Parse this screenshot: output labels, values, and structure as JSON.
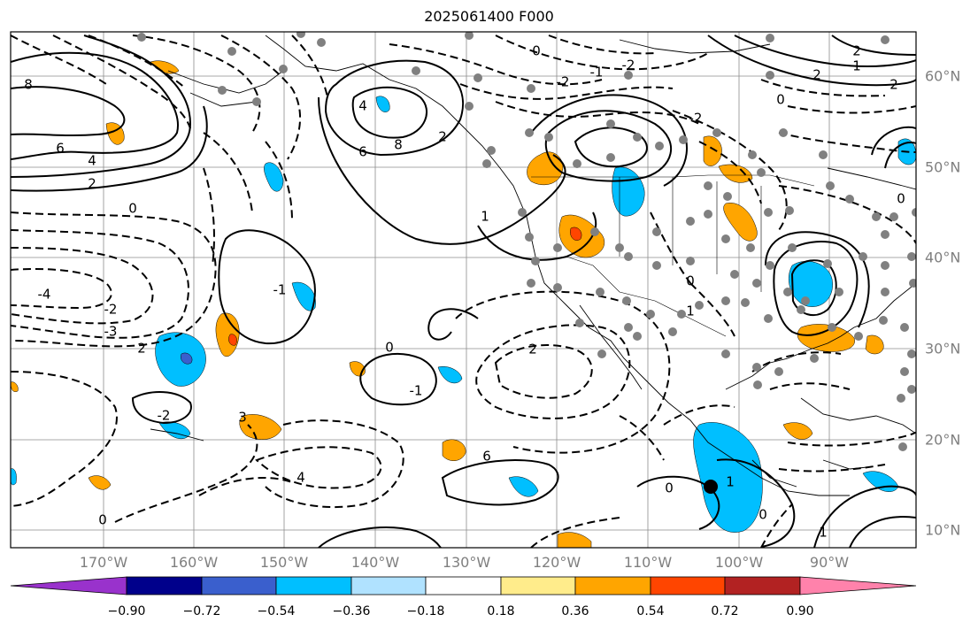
{
  "title": "2025061400 F000",
  "longitude_labels": [
    "170°W",
    "160°W",
    "150°W",
    "140°W",
    "130°W",
    "120°W",
    "110°W",
    "100°W",
    "90°W"
  ],
  "latitude_labels": [
    "60°N",
    "50°N",
    "40°N",
    "30°N",
    "20°N",
    "10°N"
  ],
  "contour_labels": [
    "8",
    "6",
    "4",
    "2",
    "0",
    "-1",
    "-2",
    "-3",
    "-4",
    "2",
    "6",
    "8",
    "4",
    "2",
    "1",
    "2",
    "0",
    "-1",
    "-2",
    "3",
    "4",
    "6",
    "0",
    "2",
    "1",
    "2",
    "0",
    "1",
    "0",
    "2",
    "-2",
    "0",
    "-1",
    "-2",
    "-2",
    "0",
    "1",
    "0",
    "1",
    "0"
  ],
  "colorbar": {
    "tick_labels": [
      "−0.90",
      "−0.72",
      "−0.54",
      "−0.36",
      "−0.18",
      "0.18",
      "0.36",
      "0.54",
      "0.72",
      "0.90"
    ],
    "colors": [
      "#9932cc",
      "#00008b",
      "#3a5fcd",
      "#00bfff",
      "#b0e2ff",
      "#ffffff",
      "#ffec8b",
      "#ffa500",
      "#ff4500",
      "#b22222",
      "#ff82ab"
    ]
  },
  "fill_colors": {
    "neg_light": "#b0e2ff",
    "neg": "#00bfff",
    "neg_strong": "#3a5fcd",
    "neg_max": "#9932cc",
    "pos_light": "#ffec8b",
    "pos": "#ffa500",
    "pos_strong": "#ff4500"
  },
  "station_color": "#808080",
  "marker_color": "#000000"
}
